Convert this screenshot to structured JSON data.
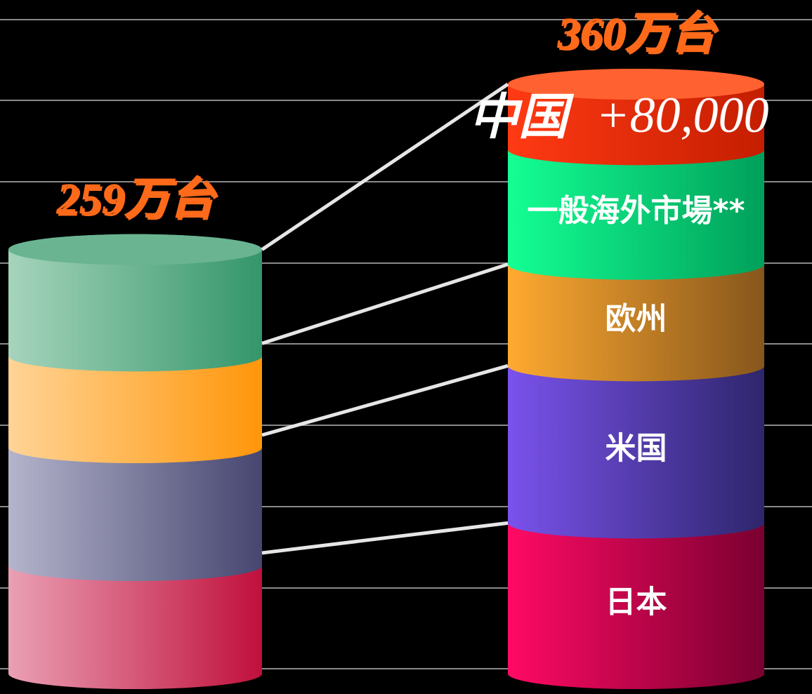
{
  "chart_data": {
    "type": "stacked_cylinder",
    "totals": [
      259,
      360
    ],
    "total_labels": [
      "259万台",
      "360万台"
    ],
    "annotation": "+80,000",
    "series": [
      {
        "name": "日本",
        "values": [
          66,
          92
        ],
        "colors": [
          [
            "#eaa0b4",
            "#c0103c"
          ],
          [
            "#ff0a64",
            "#7a0030"
          ]
        ]
      },
      {
        "name": "米国",
        "values": [
          72,
          96
        ],
        "colors": [
          [
            "#b4b4cc",
            "#464670"
          ],
          [
            "#7a52ec",
            "#2e266c"
          ]
        ]
      },
      {
        "name": "欧州",
        "values": [
          56,
          62
        ],
        "colors": [
          [
            "#ffd496",
            "#ff960a"
          ],
          [
            "#ffaa30",
            "#86561c"
          ]
        ]
      },
      {
        "name": "一般海外市場**",
        "values": [
          65,
          70
        ],
        "colors": [
          [
            "#a6d4bc",
            "#34966a"
          ],
          [
            "#14ff94",
            "#00a05a"
          ]
        ]
      },
      {
        "name": "中国",
        "values": [
          null,
          40
        ],
        "colors": [
          null,
          [
            "#ff3a14",
            "#c41e00"
          ]
        ]
      }
    ]
  }
}
